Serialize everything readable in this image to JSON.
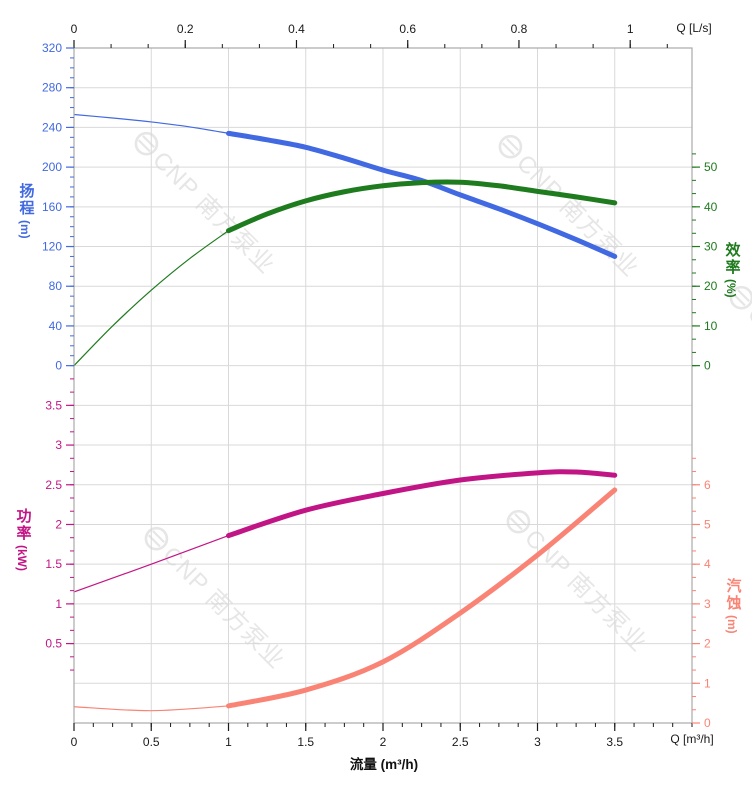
{
  "chart_data": {
    "type": "line",
    "watermark": "CNP 南方泵业",
    "axes": {
      "top": {
        "unit_label": "Q [L/s]",
        "ticks": [
          "0",
          "0.2",
          "0.4",
          "0.6",
          "0.8",
          "1"
        ],
        "range": [
          0,
          1.1111
        ],
        "subdivisions": 3,
        "color": "#1a1a1a"
      },
      "bottom": {
        "unit_label": "Q [m³/h]",
        "title": "流量 (m³/h)",
        "ticks": [
          "0",
          "0.5",
          "1",
          "1.5",
          "2",
          "2.5",
          "3",
          "3.5"
        ],
        "range": [
          0,
          4
        ],
        "subdivisions": 4,
        "color": "#1a1a1a"
      },
      "head": {
        "name": "扬程",
        "unit": "(m)",
        "ticks": [
          "0",
          "40",
          "80",
          "120",
          "160",
          "200",
          "240",
          "280",
          "320"
        ],
        "range": [
          0,
          320
        ],
        "minor_range": [
          0,
          320
        ],
        "subdivisions": 4,
        "color": "#4169E1"
      },
      "efficiency": {
        "name": "效率",
        "unit": "(%)",
        "ticks": [
          "0",
          "10",
          "20",
          "30",
          "40",
          "50"
        ],
        "range": [
          0,
          50
        ],
        "minor_range": [
          0,
          53.4
        ],
        "subdivisions": 3,
        "color": "#1E7B1E"
      },
      "power": {
        "name": "功率",
        "unit": "(kW)",
        "ticks": [
          "0.5",
          "1",
          "1.5",
          "2",
          "2.5",
          "3",
          "3.5"
        ],
        "range": [
          0.5,
          3.5
        ],
        "minor_range": [
          0.1667,
          3.8334
        ],
        "subdivisions": 3,
        "color": "#C21585"
      },
      "npsh": {
        "name": "汽蚀",
        "unit": "(m)",
        "ticks": [
          "0",
          "1",
          "2",
          "3",
          "4",
          "5",
          "6"
        ],
        "range": [
          0,
          6
        ],
        "minor_range": [
          0,
          6.6667
        ],
        "subdivisions": 3,
        "color": "#F98475"
      }
    },
    "series": [
      {
        "id": "head",
        "name": "扬程",
        "unit": "m",
        "y_axis": "head",
        "color": "#4169E1",
        "points_thin": [
          [
            0,
            253
          ],
          [
            0.25,
            249.5
          ],
          [
            0.5,
            245.5
          ],
          [
            0.75,
            240.5
          ],
          [
            1,
            234
          ]
        ],
        "points_thick": [
          [
            1,
            234
          ],
          [
            1.25,
            227.5
          ],
          [
            1.5,
            220
          ],
          [
            1.75,
            209
          ],
          [
            2,
            197
          ],
          [
            2.25,
            186.5
          ],
          [
            2.5,
            172
          ],
          [
            2.75,
            158
          ],
          [
            3,
            143
          ],
          [
            3.25,
            127
          ],
          [
            3.5,
            110
          ]
        ]
      },
      {
        "id": "efficiency",
        "name": "效率",
        "unit": "%",
        "y_axis": "efficiency",
        "color": "#1E7B1E",
        "points_thin": [
          [
            0,
            0
          ],
          [
            0.25,
            10
          ],
          [
            0.5,
            19
          ],
          [
            0.75,
            27
          ],
          [
            1,
            34
          ]
        ],
        "points_thick": [
          [
            1,
            34
          ],
          [
            1.25,
            38.2
          ],
          [
            1.5,
            41.5
          ],
          [
            1.75,
            43.8
          ],
          [
            2,
            45.3
          ],
          [
            2.25,
            46.1
          ],
          [
            2.5,
            46.2
          ],
          [
            2.75,
            45.3
          ],
          [
            3,
            43.9
          ],
          [
            3.25,
            42.5
          ],
          [
            3.5,
            41
          ]
        ]
      },
      {
        "id": "power",
        "name": "功率",
        "unit": "kW",
        "y_axis": "power",
        "color": "#C21585",
        "points_thin": [
          [
            0,
            1.15
          ],
          [
            0.5,
            1.5
          ],
          [
            1,
            1.86
          ]
        ],
        "points_thick": [
          [
            1,
            1.86
          ],
          [
            1.5,
            2.18
          ],
          [
            2,
            2.39
          ],
          [
            2.5,
            2.56
          ],
          [
            3,
            2.65
          ],
          [
            3.25,
            2.66
          ],
          [
            3.5,
            2.62
          ]
        ]
      },
      {
        "id": "npsh",
        "name": "汽蚀",
        "unit": "m",
        "y_axis": "npsh",
        "color": "#F98475",
        "points_thin": [
          [
            0,
            0.41
          ],
          [
            0.5,
            0.31
          ],
          [
            1,
            0.43
          ]
        ],
        "points_thick": [
          [
            1,
            0.43
          ],
          [
            1.5,
            0.83
          ],
          [
            2,
            1.54
          ],
          [
            2.5,
            2.77
          ],
          [
            3,
            4.23
          ],
          [
            3.5,
            5.87
          ]
        ]
      }
    ],
    "style": {
      "grid_color": "#D9D9D9",
      "frame_color": "#A9A9A9",
      "watermark_color": "#D6D6D6"
    }
  }
}
